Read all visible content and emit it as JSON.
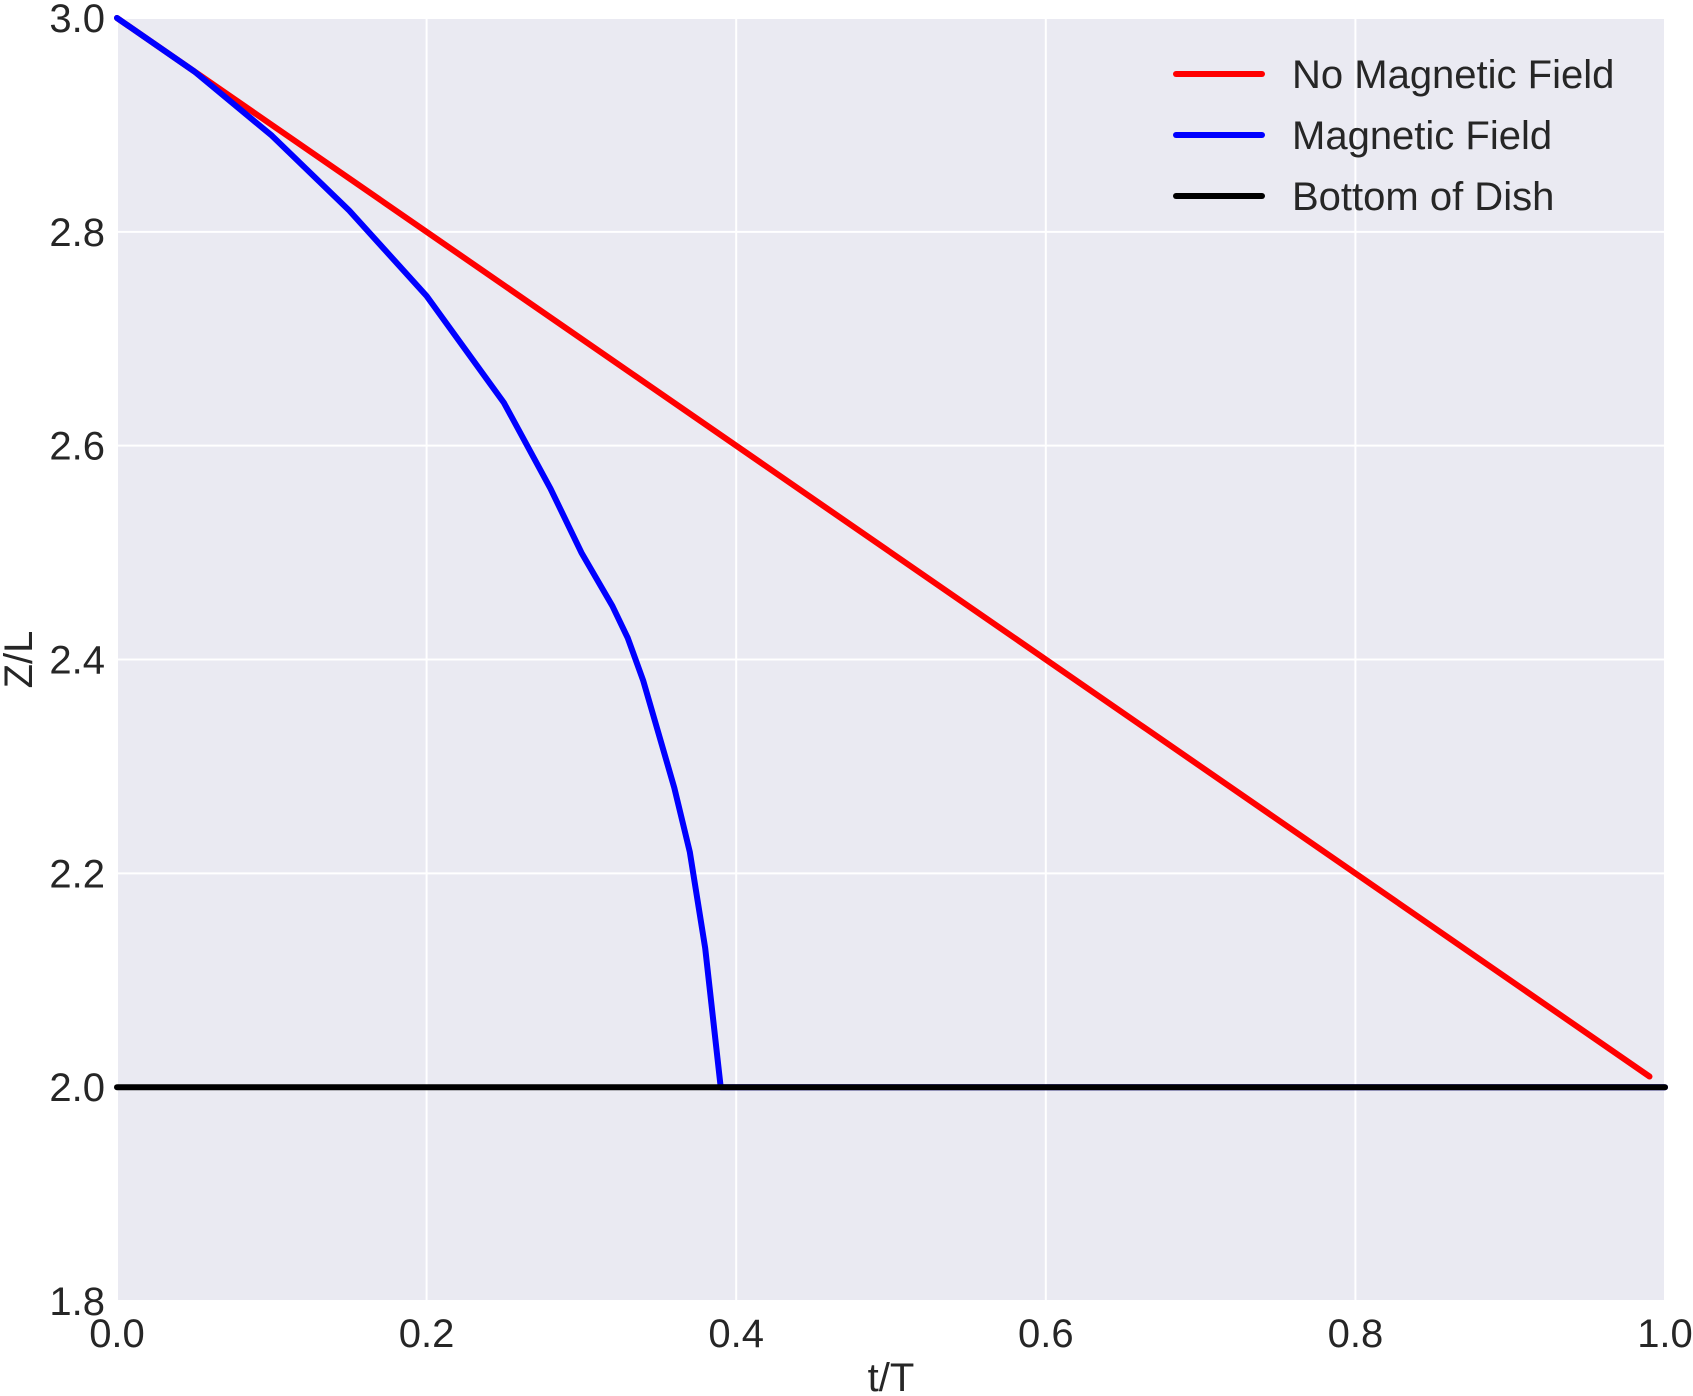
{
  "chart_data": {
    "type": "line",
    "xlabel": "t/T",
    "ylabel": "Z/L",
    "xlim": [
      0.0,
      1.0
    ],
    "ylim": [
      1.8,
      3.0
    ],
    "xticks": [
      "0.0",
      "0.2",
      "0.4",
      "0.6",
      "0.8",
      "1.0"
    ],
    "yticks": [
      "1.8",
      "2.0",
      "2.2",
      "2.4",
      "2.6",
      "2.8",
      "3.0"
    ],
    "grid": true,
    "legend_position": "top-right",
    "background_color": "#EAEAF2",
    "series": [
      {
        "name": "No Magnetic Field",
        "color": "#FF0000",
        "x": [
          0.0,
          0.99
        ],
        "y": [
          3.0,
          2.01
        ]
      },
      {
        "name": "Magnetic Field",
        "color": "#0000FF",
        "x": [
          0.0,
          0.05,
          0.1,
          0.15,
          0.2,
          0.25,
          0.28,
          0.3,
          0.32,
          0.33,
          0.34,
          0.35,
          0.36,
          0.37,
          0.38,
          0.39,
          0.4,
          0.5,
          0.6,
          0.7,
          0.8,
          0.9,
          1.0
        ],
        "y": [
          3.0,
          2.95,
          2.89,
          2.82,
          2.74,
          2.64,
          2.56,
          2.5,
          2.45,
          2.42,
          2.38,
          2.33,
          2.28,
          2.22,
          2.13,
          2.0,
          2.0,
          2.0,
          2.0,
          2.0,
          2.0,
          2.0,
          2.0
        ]
      },
      {
        "name": "Bottom of Dish",
        "color": "#000000",
        "x": [
          0.0,
          1.0
        ],
        "y": [
          2.0,
          2.0
        ]
      }
    ]
  }
}
